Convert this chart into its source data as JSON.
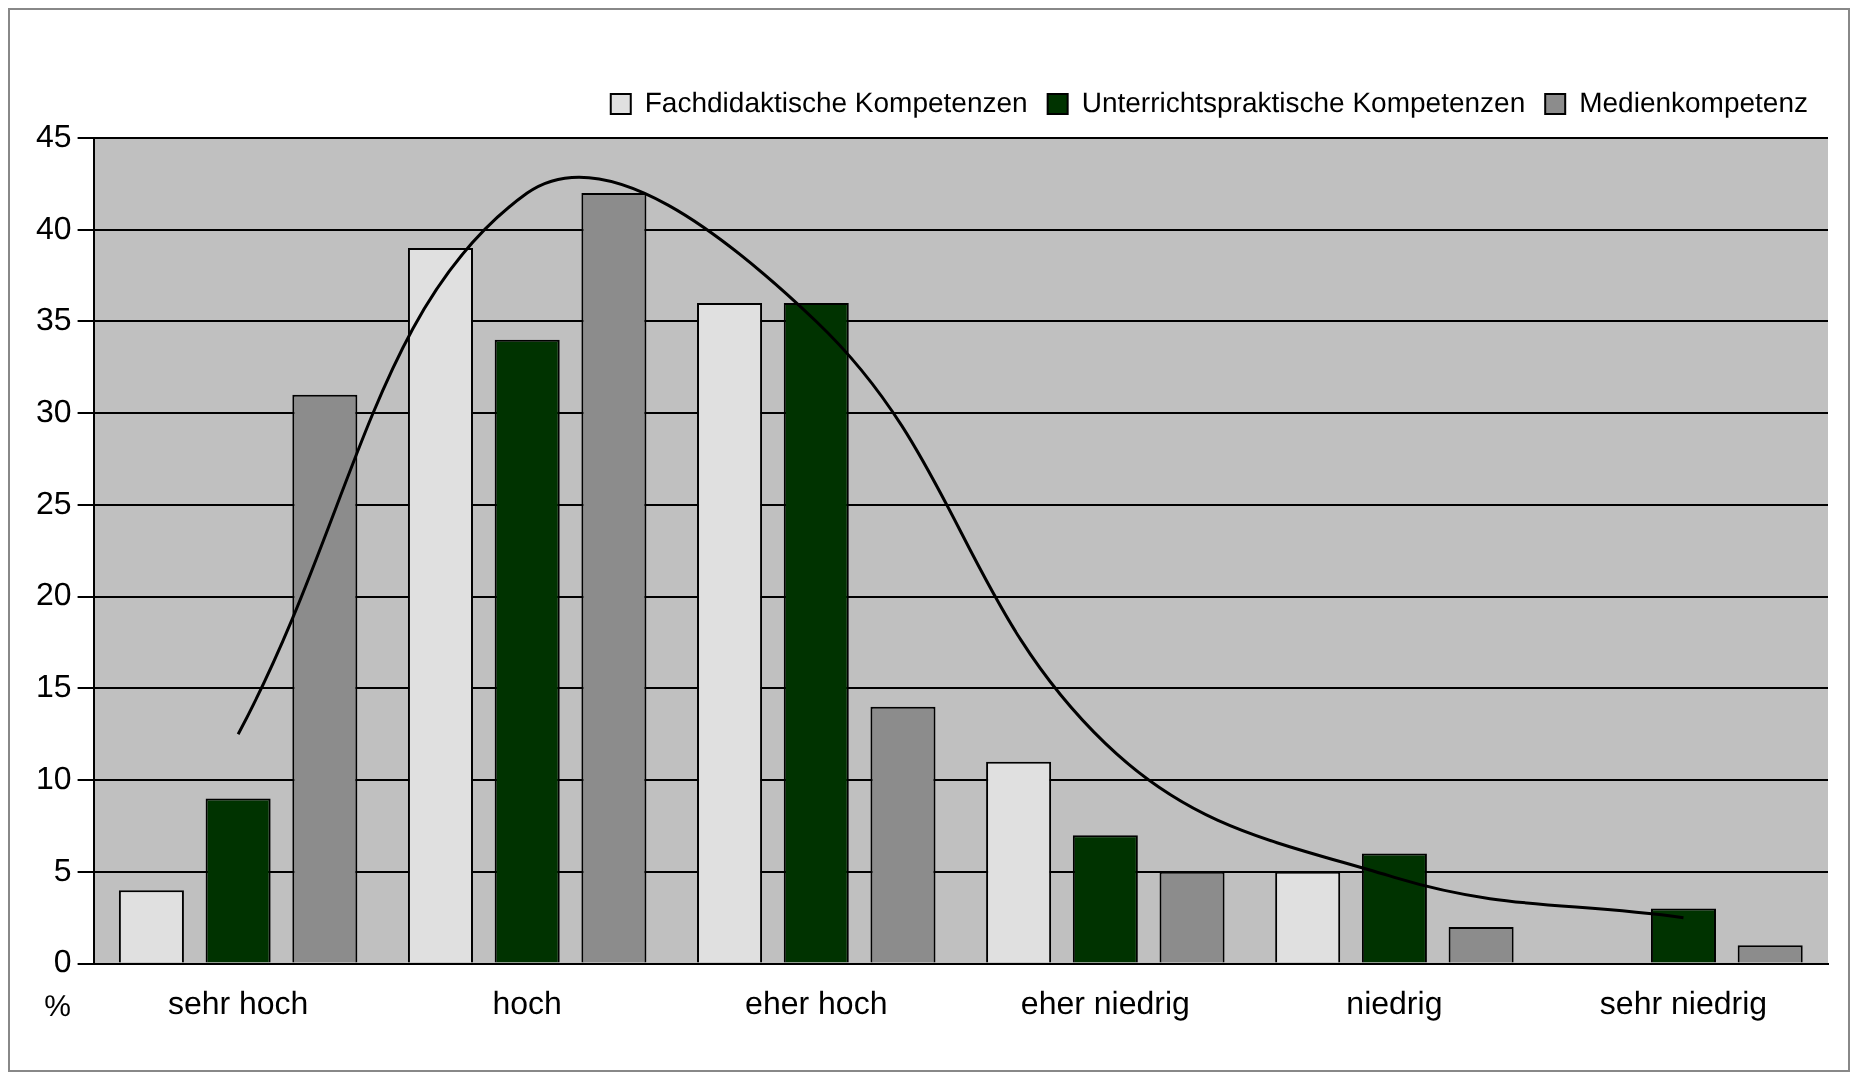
{
  "chart_data": {
    "type": "bar",
    "ylabel": "%",
    "categories": [
      "sehr hoch",
      "hoch",
      "eher hoch",
      "eher niedrig",
      "niedrig",
      "sehr niedrig"
    ],
    "ylim": [
      0,
      45
    ],
    "yticks": [
      0,
      5,
      10,
      15,
      20,
      25,
      30,
      35,
      40,
      45
    ],
    "grid": "y",
    "legend": "top right",
    "series": [
      {
        "name": "Fachdidaktische Kompetenzen",
        "color": "#e0e0e0",
        "values": [
          4,
          39,
          36,
          11,
          5,
          0
        ]
      },
      {
        "name": "Unterrichtspraktische Kompetenzen",
        "color": "#003300",
        "values": [
          9,
          34,
          36,
          7,
          6,
          3
        ]
      },
      {
        "name": "Medienkompetenz",
        "color": "#8c8c8c",
        "values": [
          31,
          42,
          14,
          5,
          2,
          1
        ]
      },
      {
        "type": "line",
        "color": "#000000",
        "values": [
          12.5,
          42,
          35,
          12,
          4.7,
          2.5
        ]
      }
    ]
  }
}
